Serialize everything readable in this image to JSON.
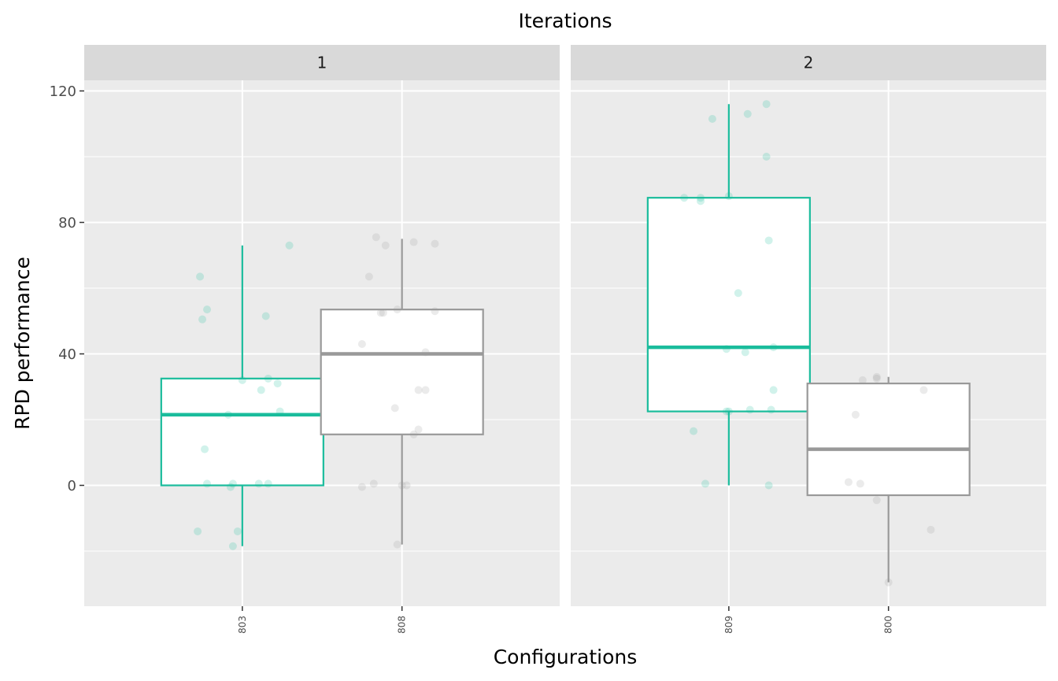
{
  "chart_data": {
    "type": "boxplot",
    "title": "Iterations",
    "xlabel": "Configurations",
    "ylabel": "RPD performance",
    "ylim": [
      -36.5,
      133
    ],
    "yticks": [
      0,
      40,
      80,
      120
    ],
    "grid": true,
    "colors": {
      "elite": "#1abc9c",
      "other": "#999999",
      "panel_bg": "#ebebeb",
      "strip_bg": "#d9d9d9",
      "grid": "#ffffff"
    },
    "facets": [
      {
        "label": "1",
        "boxes": [
          {
            "category": "803",
            "color": "#1abc9c",
            "lower_whisker": -18.5,
            "q1": 0,
            "median": 21.5,
            "q3": 32.5,
            "upper_whisker": 73,
            "points": [
              [
                -0.18,
                63.5
              ],
              [
                -0.15,
                53.5
              ],
              [
                -0.17,
                50.5
              ],
              [
                0.1,
                51.5
              ],
              [
                0.2,
                73
              ],
              [
                -0.16,
                11
              ],
              [
                -0.15,
                0.5
              ],
              [
                -0.04,
                0.5
              ],
              [
                -0.05,
                -0.5
              ],
              [
                0.07,
                0.5
              ],
              [
                0.11,
                0.5
              ],
              [
                -0.19,
                -14
              ],
              [
                -0.02,
                -14
              ],
              [
                -0.04,
                -18.5
              ],
              [
                0.08,
                29
              ],
              [
                0.11,
                32.5
              ],
              [
                0.15,
                31
              ],
              [
                0.16,
                22.5
              ],
              [
                -0.06,
                21.5
              ],
              [
                0.0,
                32
              ]
            ]
          },
          {
            "category": "808",
            "color": "#999999",
            "lower_whisker": -18,
            "q1": 15.5,
            "median": 40,
            "q3": 53.5,
            "upper_whisker": 75,
            "points": [
              [
                -0.11,
                75.5
              ],
              [
                -0.07,
                73
              ],
              [
                0.05,
                74
              ],
              [
                0.14,
                73.5
              ],
              [
                -0.14,
                63.5
              ],
              [
                -0.08,
                52.5
              ],
              [
                -0.09,
                52.5
              ],
              [
                -0.02,
                53.5
              ],
              [
                0.14,
                53
              ],
              [
                -0.17,
                43
              ],
              [
                0.1,
                40.5
              ],
              [
                0.07,
                29
              ],
              [
                0.1,
                29
              ],
              [
                -0.03,
                23.5
              ],
              [
                0.07,
                17
              ],
              [
                0.05,
                15.5
              ],
              [
                -0.12,
                0.5
              ],
              [
                -0.17,
                -0.5
              ],
              [
                0.0,
                0
              ],
              [
                0.02,
                0
              ],
              [
                -0.02,
                -18
              ]
            ]
          }
        ]
      },
      {
        "label": "2",
        "boxes": [
          {
            "category": "809",
            "color": "#1abc9c",
            "lower_whisker": 0,
            "q1": 22.5,
            "median": 42,
            "q3": 87.5,
            "upper_whisker": 116,
            "points": [
              [
                0.16,
                116
              ],
              [
                -0.07,
                111.5
              ],
              [
                0.08,
                113
              ],
              [
                0.16,
                100
              ],
              [
                -0.19,
                87.5
              ],
              [
                -0.12,
                87.5
              ],
              [
                -0.12,
                86.5
              ],
              [
                0.0,
                88
              ],
              [
                0.17,
                74.5
              ],
              [
                0.04,
                58.5
              ],
              [
                -0.01,
                41.5
              ],
              [
                0.07,
                40.5
              ],
              [
                0.19,
                42
              ],
              [
                0.19,
                29
              ],
              [
                -0.01,
                22.5
              ],
              [
                0.0,
                22.5
              ],
              [
                0.09,
                23
              ],
              [
                0.18,
                23
              ],
              [
                -0.15,
                16.5
              ],
              [
                -0.1,
                0.5
              ],
              [
                0.17,
                0
              ]
            ]
          },
          {
            "category": "800",
            "color": "#999999",
            "lower_whisker": -29.5,
            "q1": -3,
            "median": 11,
            "q3": 31,
            "upper_whisker": 33,
            "points": [
              [
                -0.11,
                32
              ],
              [
                -0.05,
                32.5
              ],
              [
                -0.05,
                33
              ],
              [
                0.15,
                29
              ],
              [
                -0.14,
                21.5
              ],
              [
                -0.17,
                1
              ],
              [
                -0.12,
                0.5
              ],
              [
                -0.05,
                -4.5
              ],
              [
                0.18,
                -13.5
              ],
              [
                0.0,
                -29.5
              ]
            ]
          }
        ]
      }
    ]
  }
}
